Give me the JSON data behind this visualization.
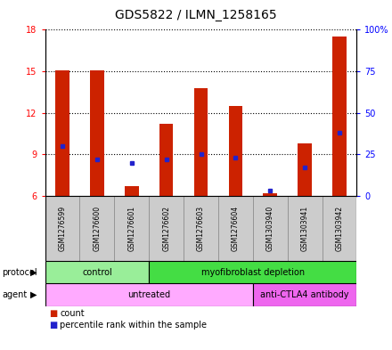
{
  "title": "GDS5822 / ILMN_1258165",
  "samples": [
    "GSM1276599",
    "GSM1276600",
    "GSM1276601",
    "GSM1276602",
    "GSM1276603",
    "GSM1276604",
    "GSM1303940",
    "GSM1303941",
    "GSM1303942"
  ],
  "counts": [
    15.1,
    15.1,
    6.7,
    11.2,
    13.8,
    12.5,
    6.2,
    9.8,
    17.5
  ],
  "percentiles": [
    30,
    22,
    20,
    22,
    25,
    23,
    3,
    17,
    38
  ],
  "ylim_left": [
    6,
    18
  ],
  "ylim_right": [
    0,
    100
  ],
  "yticks_left": [
    6,
    9,
    12,
    15,
    18
  ],
  "yticks_right": [
    0,
    25,
    50,
    75,
    100
  ],
  "yticklabels_right": [
    "0",
    "25",
    "50",
    "75",
    "100%"
  ],
  "bar_color": "#CC2200",
  "dot_color": "#2222CC",
  "bar_bottom": 6,
  "bar_width": 0.4,
  "protocol_groups": [
    {
      "label": "control",
      "start": 0,
      "end": 3,
      "color": "#99EE99"
    },
    {
      "label": "myofibroblast depletion",
      "start": 3,
      "end": 9,
      "color": "#44DD44"
    }
  ],
  "agent_groups": [
    {
      "label": "untreated",
      "start": 0,
      "end": 6,
      "color": "#FFAAFF"
    },
    {
      "label": "anti-CTLA4 antibody",
      "start": 6,
      "end": 9,
      "color": "#EE66EE"
    }
  ],
  "sample_box_color": "#CCCCCC",
  "legend_count_color": "#CC2200",
  "legend_dot_color": "#2222CC",
  "protocol_label": "protocol",
  "agent_label": "agent",
  "title_fontsize": 10,
  "tick_fontsize": 7,
  "label_fontsize": 7,
  "sample_fontsize": 5.5
}
